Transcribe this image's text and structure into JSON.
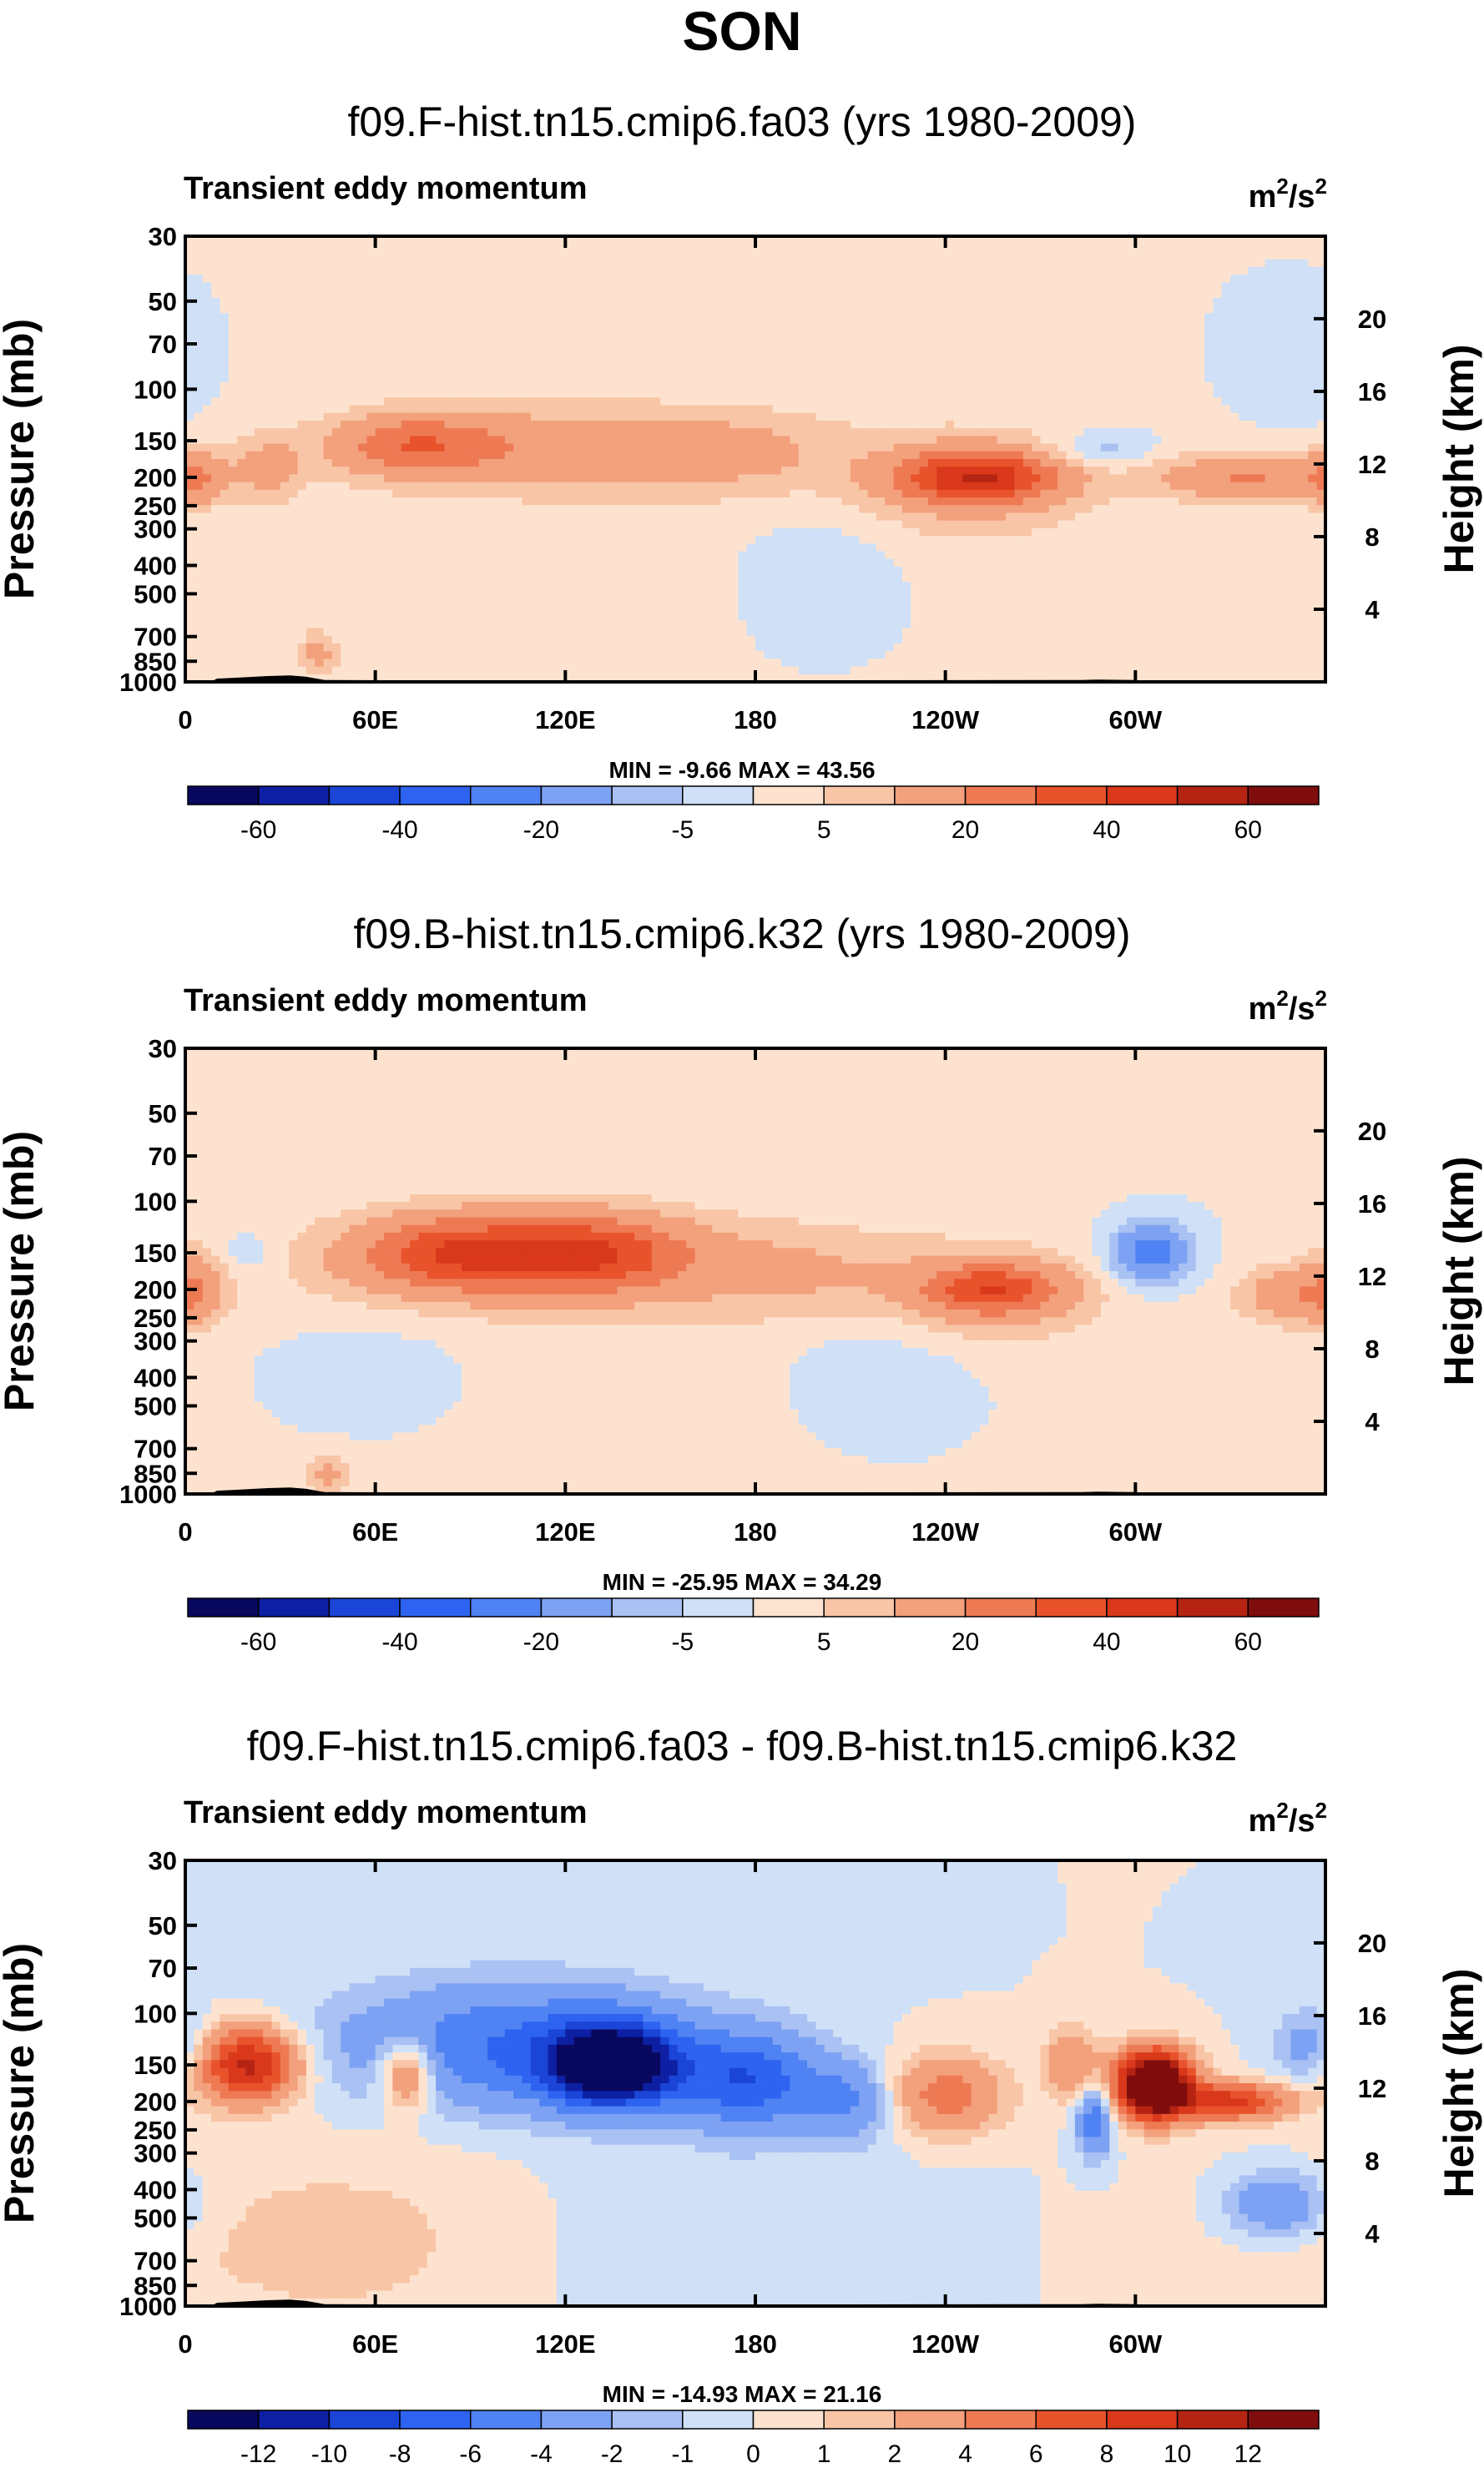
{
  "figure_title": "SON",
  "chart_data": [
    {
      "type": "contour",
      "title": "f09.F-hist.tn15.cmip6.fa03 (yrs 1980-2009)",
      "left_string": "Transient eddy momentum",
      "units_label": "m",
      "units_sup": "2",
      "units_suffix": "/s",
      "units_sup2": "2",
      "ylabel": "Pressure (mb)",
      "ylabel_right": "Height (km)",
      "pressure_ticks": [
        30,
        50,
        70,
        100,
        150,
        200,
        250,
        300,
        400,
        500,
        700,
        850,
        1000
      ],
      "pressure_tick_labels": [
        "30",
        "50",
        "70",
        "100",
        "150",
        "200",
        "250",
        "300",
        "400",
        "500",
        "700",
        "850",
        "1000"
      ],
      "height_ticks": [
        4,
        8,
        12,
        16,
        20
      ],
      "height_tick_labels": [
        "4",
        "8",
        "12",
        "16",
        "20"
      ],
      "lon_ticks": [
        0,
        60,
        120,
        180,
        240,
        300
      ],
      "lon_tick_labels": [
        "0",
        "60E",
        "120E",
        "180",
        "120W",
        "60W"
      ],
      "min_label": "MIN =",
      "min_value": "-9.66",
      "max_label": "MAX =",
      "max_value": "43.56",
      "cbar_levels": [
        -70,
        -60,
        -50,
        -40,
        -30,
        -20,
        -10,
        -5,
        0,
        5,
        10,
        20,
        30,
        40,
        50,
        60,
        70
      ],
      "cbar_labels": [
        "-60",
        "-40",
        "-20",
        "-5",
        "5",
        "20",
        "40",
        "60"
      ],
      "blobs": [
        {
          "lon": 72,
          "p": 155,
          "v": 24,
          "slon": 18,
          "sp": 0.17
        },
        {
          "lon": 122,
          "p": 160,
          "v": 14,
          "slon": 36,
          "sp": 0.22
        },
        {
          "lon": 175,
          "p": 165,
          "v": 7,
          "slon": 22,
          "sp": 0.22
        },
        {
          "lon": 3,
          "p": 200,
          "v": 16,
          "slon": 6,
          "sp": 0.16
        },
        {
          "lon": 26,
          "p": 185,
          "v": 11,
          "slon": 8,
          "sp": 0.2
        },
        {
          "lon": 250,
          "p": 200,
          "v": 43,
          "slon": 17,
          "sp": 0.14
        },
        {
          "lon": 245,
          "p": 210,
          "v": 8,
          "slon": 32,
          "sp": 0.34
        },
        {
          "lon": 336,
          "p": 200,
          "v": 20,
          "slon": 20,
          "sp": 0.13
        },
        {
          "lon": 42,
          "p": 800,
          "v": 12,
          "slon": 4,
          "sp": 0.12
        },
        {
          "lon": 145,
          "p": 350,
          "v": 3,
          "slon": 100,
          "sp": 1.2
        },
        {
          "lon": 290,
          "p": 160,
          "v": -9,
          "slon": 11,
          "sp": 0.1
        },
        {
          "lon": 200,
          "p": 450,
          "v": -7,
          "slon": 20,
          "sp": 0.45
        },
        {
          "lon": 350,
          "p": 80,
          "v": -5,
          "slon": 12,
          "sp": 0.3
        }
      ]
    },
    {
      "type": "contour",
      "title": "f09.B-hist.tn15.cmip6.k32 (yrs 1980-2009)",
      "left_string": "Transient eddy momentum",
      "units_label": "m",
      "units_sup": "2",
      "units_suffix": "/s",
      "units_sup2": "2",
      "ylabel": "Pressure (mb)",
      "ylabel_right": "Height (km)",
      "pressure_ticks": [
        30,
        50,
        70,
        100,
        150,
        200,
        250,
        300,
        400,
        500,
        700,
        850,
        1000
      ],
      "pressure_tick_labels": [
        "30",
        "50",
        "70",
        "100",
        "150",
        "200",
        "250",
        "300",
        "400",
        "500",
        "700",
        "850",
        "1000"
      ],
      "height_ticks": [
        4,
        8,
        12,
        16,
        20
      ],
      "height_tick_labels": [
        "4",
        "8",
        "12",
        "16",
        "20"
      ],
      "lon_ticks": [
        0,
        60,
        120,
        180,
        240,
        300
      ],
      "lon_tick_labels": [
        "0",
        "60E",
        "120E",
        "180",
        "120W",
        "60W"
      ],
      "min_label": "MIN =",
      "min_value": "-25.95",
      "max_label": "MAX =",
      "max_value": "34.29",
      "cbar_levels": [
        -70,
        -60,
        -50,
        -40,
        -30,
        -20,
        -10,
        -5,
        0,
        5,
        10,
        20,
        30,
        40,
        50,
        60,
        70
      ],
      "cbar_labels": [
        "-60",
        "-40",
        "-20",
        "-5",
        "5",
        "20",
        "40",
        "60"
      ],
      "blobs": [
        {
          "lon": 85,
          "p": 150,
          "v": 28,
          "slon": 20,
          "sp": 0.2
        },
        {
          "lon": 128,
          "p": 150,
          "v": 30,
          "slon": 20,
          "sp": 0.2
        },
        {
          "lon": 105,
          "p": 160,
          "v": 12,
          "slon": 48,
          "sp": 0.26
        },
        {
          "lon": 190,
          "p": 175,
          "v": 7,
          "slon": 28,
          "sp": 0.25
        },
        {
          "lon": 255,
          "p": 200,
          "v": 32,
          "slon": 15,
          "sp": 0.14
        },
        {
          "lon": 250,
          "p": 210,
          "v": 8,
          "slon": 30,
          "sp": 0.32
        },
        {
          "lon": 3,
          "p": 200,
          "v": 14,
          "slon": 6,
          "sp": 0.2
        },
        {
          "lon": 350,
          "p": 210,
          "v": 16,
          "slon": 12,
          "sp": 0.16
        },
        {
          "lon": 45,
          "p": 850,
          "v": 12,
          "slon": 4,
          "sp": 0.12
        },
        {
          "lon": 140,
          "p": 350,
          "v": 3,
          "slon": 100,
          "sp": 1.2
        },
        {
          "lon": 305,
          "p": 150,
          "v": -26,
          "slon": 9,
          "sp": 0.17
        },
        {
          "lon": 20,
          "p": 150,
          "v": -6,
          "slon": 6,
          "sp": 0.12
        },
        {
          "lon": 220,
          "p": 400,
          "v": -7,
          "slon": 22,
          "sp": 0.4
        },
        {
          "lon": 60,
          "p": 400,
          "v": -5,
          "slon": 25,
          "sp": 0.35
        }
      ]
    },
    {
      "type": "contour",
      "title": "f09.F-hist.tn15.cmip6.fa03 - f09.B-hist.tn15.cmip6.k32",
      "left_string": "Transient eddy momentum",
      "units_label": "m",
      "units_sup": "2",
      "units_suffix": "/s",
      "units_sup2": "2",
      "ylabel": "Pressure (mb)",
      "ylabel_right": "Height (km)",
      "pressure_ticks": [
        30,
        50,
        70,
        100,
        150,
        200,
        250,
        300,
        400,
        500,
        700,
        850,
        1000
      ],
      "pressure_tick_labels": [
        "30",
        "50",
        "70",
        "100",
        "150",
        "200",
        "250",
        "300",
        "400",
        "500",
        "700",
        "850",
        "1000"
      ],
      "height_ticks": [
        4,
        8,
        12,
        16,
        20
      ],
      "height_tick_labels": [
        "4",
        "8",
        "12",
        "16",
        "20"
      ],
      "lon_ticks": [
        0,
        60,
        120,
        180,
        240,
        300
      ],
      "lon_tick_labels": [
        "0",
        "60E",
        "120E",
        "180",
        "120W",
        "60W"
      ],
      "min_label": "MIN =",
      "min_value": "-14.93",
      "max_label": "MAX =",
      "max_value": "21.16",
      "cbar_levels": [
        -14,
        -12,
        -10,
        -8,
        -6,
        -4,
        -2,
        -1,
        0,
        1,
        2,
        4,
        6,
        8,
        10,
        12,
        14
      ],
      "cbar_labels": [
        "-12",
        "-10",
        "-8",
        "-6",
        "-4",
        "-2",
        "-1",
        "0",
        "1",
        "2",
        "4",
        "6",
        "8",
        "10",
        "12"
      ],
      "blobs": [
        {
          "lon": 20,
          "p": 150,
          "v": 11,
          "slon": 11,
          "sp": 0.2
        },
        {
          "lon": 70,
          "p": 160,
          "v": 6,
          "slon": 6,
          "sp": 0.2
        },
        {
          "lon": 135,
          "p": 150,
          "v": -15,
          "slon": 14,
          "sp": 0.22
        },
        {
          "lon": 105,
          "p": 130,
          "v": -6,
          "slon": 40,
          "sp": 0.35
        },
        {
          "lon": 178,
          "p": 170,
          "v": -7,
          "slon": 15,
          "sp": 0.26
        },
        {
          "lon": 210,
          "p": 200,
          "v": -4,
          "slon": 10,
          "sp": 0.22
        },
        {
          "lon": 240,
          "p": 190,
          "v": 5,
          "slon": 13,
          "sp": 0.22
        },
        {
          "lon": 280,
          "p": 150,
          "v": 4,
          "slon": 6,
          "sp": 0.2
        },
        {
          "lon": 287,
          "p": 230,
          "v": -6,
          "slon": 4,
          "sp": 0.2
        },
        {
          "lon": 306,
          "p": 175,
          "v": 21,
          "slon": 8,
          "sp": 0.18
        },
        {
          "lon": 330,
          "p": 200,
          "v": 9,
          "slon": 13,
          "sp": 0.1
        },
        {
          "lon": 345,
          "p": 450,
          "v": -4,
          "slon": 12,
          "sp": 0.2
        },
        {
          "lon": 355,
          "p": 130,
          "v": -3,
          "slon": 8,
          "sp": 0.2
        },
        {
          "lon": 60,
          "p": 600,
          "v": 1.5,
          "slon": 60,
          "sp": 0.6
        },
        {
          "lon": 150,
          "p": 600,
          "v": -1.2,
          "slon": 50,
          "sp": 0.6
        }
      ]
    }
  ]
}
